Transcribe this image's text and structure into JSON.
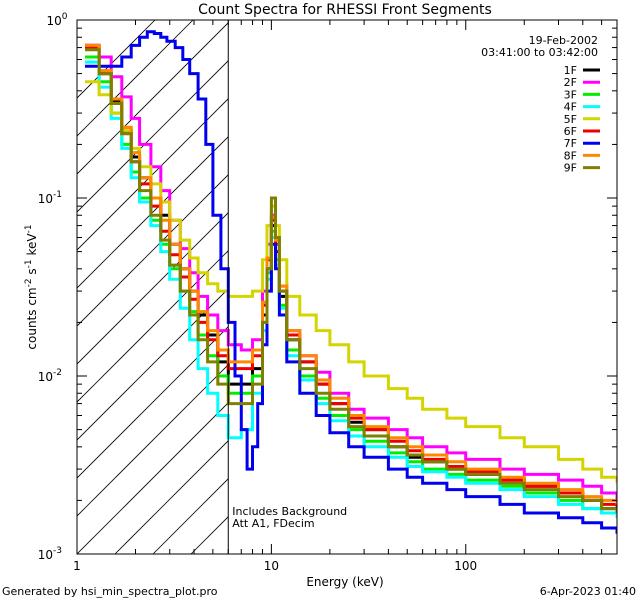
{
  "chart_data": {
    "type": "line",
    "title": "Count Spectra for RHESSI Front Segments",
    "xlabel": "Energy (keV)",
    "ylabel_parts": {
      "base": "counts cm",
      "exp1": "-2",
      "mid": " s",
      "exp2": "-1",
      "mid2": " keV",
      "exp3": "-1"
    },
    "x_scale": "log",
    "y_scale": "log",
    "xlim": [
      1,
      600
    ],
    "ylim": [
      0.001,
      1
    ],
    "x_tick_labels": [
      {
        "value": 1,
        "label": "1"
      },
      {
        "value": 10,
        "label": "10"
      },
      {
        "value": 100,
        "label": "100"
      }
    ],
    "y_tick_labels": [
      {
        "value": 1,
        "base": "10",
        "exp": "0"
      },
      {
        "value": 0.1,
        "base": "10",
        "exp": "-1"
      },
      {
        "value": 0.01,
        "base": "10",
        "exp": "-2"
      },
      {
        "value": 0.001,
        "base": "10",
        "exp": "-3"
      }
    ],
    "date_label": "19-Feb-2002",
    "time_range_label": "03:41:00 to 03:42:00",
    "annotation_lines": [
      "Includes Background",
      "Att A1, FDecim"
    ],
    "attenuator_edge_keV": 6,
    "series": [
      {
        "name": "1F",
        "color": "#000000",
        "x": [
          1.1,
          1.3,
          1.5,
          1.7,
          1.9,
          2.1,
          2.4,
          2.7,
          3,
          3.4,
          3.8,
          4.2,
          4.7,
          5.3,
          6,
          7,
          8,
          9,
          9.5,
          10,
          10.5,
          11,
          12,
          14,
          17,
          20,
          25,
          30,
          40,
          50,
          60,
          80,
          100,
          150,
          200,
          300,
          400,
          500,
          600
        ],
        "y": [
          0.72,
          0.5,
          0.35,
          0.24,
          0.17,
          0.13,
          0.1,
          0.08,
          0.055,
          0.04,
          0.03,
          0.022,
          0.017,
          0.012,
          0.009,
          0.009,
          0.011,
          0.022,
          0.04,
          0.07,
          0.05,
          0.028,
          0.016,
          0.012,
          0.009,
          0.007,
          0.0055,
          0.005,
          0.004,
          0.0035,
          0.0033,
          0.003,
          0.0028,
          0.0026,
          0.0024,
          0.0022,
          0.002,
          0.0018,
          0.0017
        ]
      },
      {
        "name": "2F",
        "color": "#ff00ff",
        "x": [
          1.1,
          1.3,
          1.5,
          1.7,
          1.9,
          2.1,
          2.4,
          2.7,
          3,
          3.4,
          3.8,
          4.2,
          4.7,
          5.3,
          6,
          7,
          8,
          9,
          9.5,
          10,
          10.5,
          11,
          12,
          14,
          17,
          20,
          25,
          30,
          40,
          50,
          60,
          80,
          100,
          150,
          200,
          300,
          400,
          500,
          600
        ],
        "y": [
          0.72,
          0.62,
          0.48,
          0.37,
          0.28,
          0.2,
          0.15,
          0.11,
          0.075,
          0.052,
          0.038,
          0.028,
          0.022,
          0.018,
          0.015,
          0.014,
          0.016,
          0.03,
          0.055,
          0.08,
          0.06,
          0.032,
          0.018,
          0.013,
          0.0105,
          0.008,
          0.0065,
          0.0058,
          0.005,
          0.0045,
          0.004,
          0.0037,
          0.0034,
          0.003,
          0.0028,
          0.0026,
          0.0024,
          0.0022,
          0.002
        ]
      },
      {
        "name": "3F",
        "color": "#00ee00",
        "x": [
          1.1,
          1.3,
          1.5,
          1.7,
          1.9,
          2.1,
          2.4,
          2.7,
          3,
          3.4,
          3.8,
          4.2,
          4.7,
          5.3,
          6,
          7,
          8,
          9,
          9.5,
          10,
          10.5,
          11,
          12,
          14,
          17,
          20,
          25,
          30,
          40,
          50,
          60,
          80,
          100,
          150,
          200,
          300,
          400,
          500,
          600
        ],
        "y": [
          0.62,
          0.45,
          0.3,
          0.2,
          0.14,
          0.1,
          0.075,
          0.055,
          0.04,
          0.03,
          0.023,
          0.017,
          0.013,
          0.01,
          0.008,
          0.008,
          0.01,
          0.02,
          0.038,
          0.065,
          0.045,
          0.025,
          0.014,
          0.01,
          0.0075,
          0.006,
          0.005,
          0.0043,
          0.0037,
          0.0033,
          0.003,
          0.0028,
          0.0026,
          0.0024,
          0.0022,
          0.002,
          0.0018,
          0.0017,
          0.0016
        ]
      },
      {
        "name": "4F",
        "color": "#00ffff",
        "x": [
          1.1,
          1.3,
          1.5,
          1.7,
          1.9,
          2.1,
          2.4,
          2.7,
          3,
          3.4,
          3.8,
          4.2,
          4.7,
          5.3,
          6,
          7,
          8,
          9,
          9.5,
          10,
          10.5,
          11,
          12,
          14,
          17,
          20,
          25,
          30,
          40,
          50,
          60,
          80,
          100,
          150,
          200,
          300,
          400,
          500,
          600
        ],
        "y": [
          0.58,
          0.42,
          0.28,
          0.19,
          0.13,
          0.095,
          0.07,
          0.05,
          0.035,
          0.024,
          0.016,
          0.011,
          0.008,
          0.006,
          0.0045,
          0.005,
          0.008,
          0.018,
          0.035,
          0.06,
          0.042,
          0.024,
          0.013,
          0.0095,
          0.007,
          0.0056,
          0.0046,
          0.004,
          0.0035,
          0.0031,
          0.0029,
          0.0027,
          0.0025,
          0.0023,
          0.0021,
          0.0019,
          0.0018,
          0.0017,
          0.0016
        ]
      },
      {
        "name": "5F",
        "color": "#d4d400",
        "x": [
          1.1,
          1.3,
          1.5,
          1.7,
          1.9,
          2.1,
          2.4,
          2.7,
          3,
          3.4,
          3.8,
          4.2,
          4.7,
          5.3,
          6,
          7,
          8,
          9,
          9.5,
          10,
          10.5,
          11,
          12,
          14,
          17,
          20,
          25,
          30,
          40,
          50,
          60,
          80,
          100,
          150,
          200,
          300,
          400,
          500,
          600
        ],
        "y": [
          0.45,
          0.38,
          0.3,
          0.24,
          0.19,
          0.15,
          0.12,
          0.095,
          0.075,
          0.058,
          0.046,
          0.038,
          0.033,
          0.03,
          0.028,
          0.028,
          0.03,
          0.045,
          0.07,
          0.09,
          0.07,
          0.045,
          0.028,
          0.022,
          0.018,
          0.015,
          0.012,
          0.01,
          0.0085,
          0.0075,
          0.0065,
          0.0058,
          0.0052,
          0.0045,
          0.004,
          0.0034,
          0.003,
          0.0027,
          0.0025
        ]
      },
      {
        "name": "6F",
        "color": "#ee0000",
        "x": [
          1.1,
          1.3,
          1.5,
          1.7,
          1.9,
          2.1,
          2.4,
          2.7,
          3,
          3.4,
          3.8,
          4.2,
          4.7,
          5.3,
          6,
          7,
          8,
          9,
          9.5,
          10,
          10.5,
          11,
          12,
          14,
          17,
          20,
          25,
          30,
          40,
          50,
          60,
          80,
          100,
          150,
          200,
          300,
          400,
          500,
          600
        ],
        "y": [
          0.7,
          0.5,
          0.34,
          0.23,
          0.16,
          0.12,
          0.09,
          0.065,
          0.048,
          0.036,
          0.027,
          0.02,
          0.016,
          0.013,
          0.011,
          0.011,
          0.013,
          0.025,
          0.045,
          0.075,
          0.055,
          0.03,
          0.017,
          0.012,
          0.009,
          0.007,
          0.0058,
          0.005,
          0.0043,
          0.0038,
          0.0034,
          0.0031,
          0.0029,
          0.0026,
          0.0024,
          0.0022,
          0.002,
          0.0019,
          0.0018
        ]
      },
      {
        "name": "7F",
        "color": "#0000ee",
        "x": [
          1.1,
          1.3,
          1.5,
          1.7,
          1.9,
          2.1,
          2.3,
          2.5,
          2.7,
          2.9,
          3.2,
          3.5,
          3.8,
          4.2,
          4.6,
          5,
          5.5,
          6,
          6.5,
          7,
          7.5,
          8,
          8.5,
          9,
          9.5,
          10,
          10.5,
          11,
          12,
          14,
          17,
          20,
          25,
          30,
          40,
          50,
          60,
          80,
          100,
          150,
          200,
          300,
          400,
          500,
          600
        ],
        "y": [
          0.55,
          0.55,
          0.55,
          0.62,
          0.72,
          0.8,
          0.86,
          0.84,
          0.8,
          0.76,
          0.7,
          0.6,
          0.5,
          0.36,
          0.2,
          0.08,
          0.04,
          0.02,
          0.01,
          0.005,
          0.003,
          0.004,
          0.007,
          0.015,
          0.03,
          0.055,
          0.04,
          0.022,
          0.012,
          0.008,
          0.006,
          0.0048,
          0.004,
          0.0035,
          0.003,
          0.0027,
          0.0025,
          0.0023,
          0.0021,
          0.0019,
          0.0017,
          0.0016,
          0.0015,
          0.0014,
          0.0013
        ]
      },
      {
        "name": "8F",
        "color": "#ff8800",
        "x": [
          1.1,
          1.3,
          1.5,
          1.7,
          1.9,
          2.1,
          2.4,
          2.7,
          3,
          3.4,
          3.8,
          4.2,
          4.7,
          5.3,
          6,
          7,
          8,
          9,
          9.5,
          10,
          10.5,
          11,
          12,
          14,
          17,
          20,
          25,
          30,
          40,
          50,
          60,
          80,
          100,
          150,
          200,
          300,
          400,
          500,
          600
        ],
        "y": [
          0.72,
          0.52,
          0.36,
          0.25,
          0.18,
          0.13,
          0.1,
          0.075,
          0.055,
          0.04,
          0.03,
          0.023,
          0.018,
          0.014,
          0.012,
          0.012,
          0.014,
          0.026,
          0.046,
          0.078,
          0.058,
          0.032,
          0.018,
          0.013,
          0.0095,
          0.0075,
          0.006,
          0.0052,
          0.0045,
          0.004,
          0.0036,
          0.0033,
          0.003,
          0.0027,
          0.0025,
          0.0023,
          0.0021,
          0.002,
          0.0019
        ]
      },
      {
        "name": "9F",
        "color": "#808000",
        "x": [
          1.1,
          1.3,
          1.5,
          1.7,
          1.9,
          2.1,
          2.4,
          2.7,
          3,
          3.4,
          3.8,
          4.2,
          4.7,
          5.3,
          6,
          7,
          8,
          9,
          9.5,
          10,
          10.5,
          11,
          12,
          14,
          17,
          20,
          25,
          30,
          40,
          50,
          60,
          80,
          100,
          150,
          200,
          300,
          400,
          500,
          600
        ],
        "y": [
          0.68,
          0.5,
          0.34,
          0.23,
          0.16,
          0.11,
          0.08,
          0.058,
          0.042,
          0.03,
          0.022,
          0.016,
          0.012,
          0.009,
          0.007,
          0.007,
          0.009,
          0.02,
          0.04,
          0.1,
          0.06,
          0.03,
          0.016,
          0.011,
          0.008,
          0.0065,
          0.0052,
          0.0046,
          0.004,
          0.0036,
          0.0033,
          0.003,
          0.0028,
          0.0025,
          0.0023,
          0.0021,
          0.002,
          0.0018,
          0.0017
        ]
      }
    ]
  },
  "footer": {
    "generated_by": "Generated by hsi_min_spectra_plot.pro",
    "timestamp": "6-Apr-2023 01:40"
  }
}
